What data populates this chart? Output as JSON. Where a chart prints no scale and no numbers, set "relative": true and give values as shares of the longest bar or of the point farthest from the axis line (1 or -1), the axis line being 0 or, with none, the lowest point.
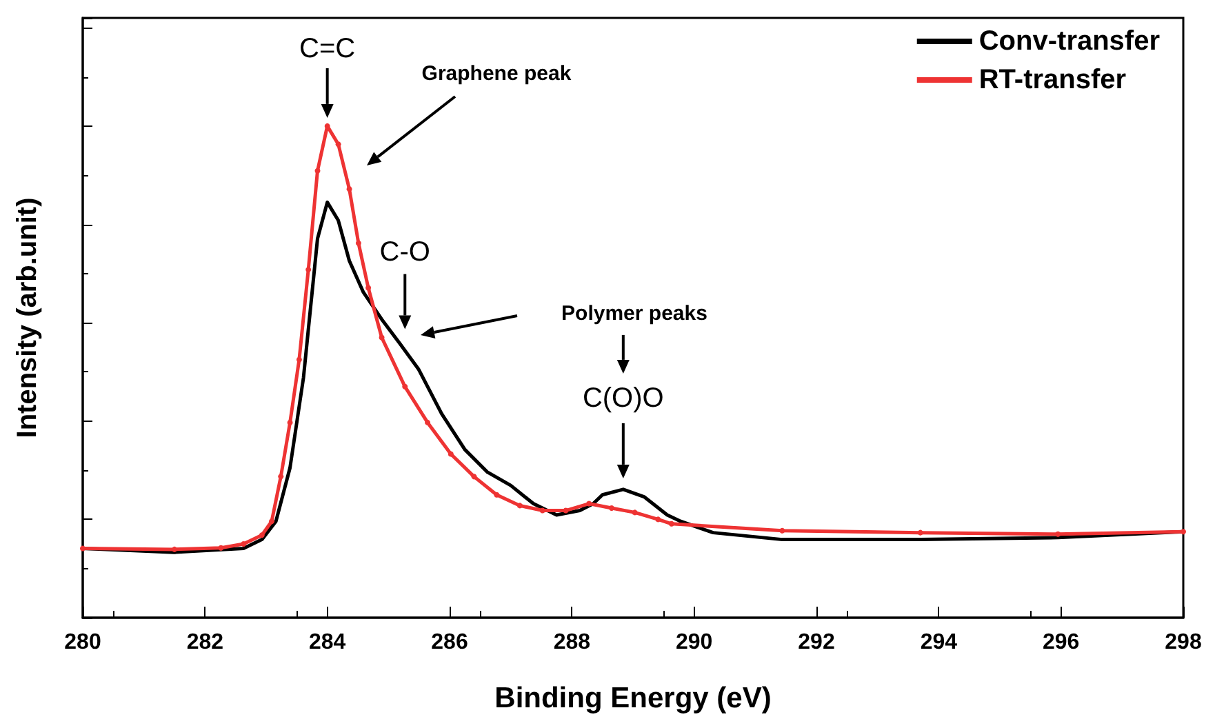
{
  "chart_data": {
    "type": "line",
    "relative": true,
    "xlabel": "Binding Energy (eV)",
    "ylabel": "Intensity (arb.unit)",
    "xlim": [
      280,
      298
    ],
    "xticks": [
      280,
      282,
      284,
      286,
      288,
      290,
      292,
      294,
      296,
      298
    ],
    "tick_labels": "x",
    "grid": false,
    "legend": "top right",
    "line_style": "solid",
    "series": [
      {
        "name": "Conv-transfer",
        "color": "#000000",
        "marker": "none",
        "x": [
          280.0,
          281.5,
          282.63,
          282.93,
          283.16,
          283.39,
          283.61,
          283.84,
          284.0,
          284.18,
          284.36,
          284.59,
          284.89,
          285.19,
          285.49,
          285.87,
          286.25,
          286.62,
          287.0,
          287.37,
          287.75,
          288.13,
          288.35,
          288.5,
          288.84,
          289.18,
          289.56,
          289.78,
          290.31,
          291.44,
          293.7,
          295.95,
          298.0
        ],
        "values": [
          0.141,
          0.133,
          0.141,
          0.159,
          0.196,
          0.305,
          0.488,
          0.771,
          0.845,
          0.808,
          0.726,
          0.662,
          0.607,
          0.557,
          0.506,
          0.415,
          0.342,
          0.296,
          0.269,
          0.232,
          0.209,
          0.218,
          0.232,
          0.25,
          0.261,
          0.246,
          0.209,
          0.196,
          0.173,
          0.159,
          0.159,
          0.163,
          0.175
        ]
      },
      {
        "name": "RT-transfer",
        "color": "#ee3333",
        "marker": "circle",
        "x": [
          280.0,
          281.5,
          282.26,
          282.63,
          282.93,
          283.09,
          283.24,
          283.39,
          283.54,
          283.69,
          283.84,
          284.0,
          284.18,
          284.36,
          284.51,
          284.67,
          284.89,
          285.27,
          285.64,
          286.02,
          286.4,
          286.77,
          287.15,
          287.52,
          287.9,
          288.28,
          288.65,
          289.03,
          289.41,
          289.63,
          291.44,
          293.7,
          295.95,
          298.0
        ],
        "values": [
          0.141,
          0.139,
          0.142,
          0.15,
          0.168,
          0.196,
          0.287,
          0.397,
          0.525,
          0.708,
          0.909,
          1.0,
          0.963,
          0.872,
          0.762,
          0.671,
          0.57,
          0.47,
          0.397,
          0.333,
          0.287,
          0.25,
          0.228,
          0.218,
          0.218,
          0.232,
          0.223,
          0.214,
          0.2,
          0.191,
          0.177,
          0.173,
          0.17,
          0.175
        ]
      }
    ],
    "annotations": [
      {
        "text": "C=C",
        "x": 284.0,
        "y": 1.0
      },
      "Graphene peak",
      {
        "text": "C-O",
        "x": 285.27,
        "y": 0.57
      },
      "Polymer peaks",
      {
        "text": "C(O)O",
        "x": 288.84,
        "y": 0.261
      }
    ]
  }
}
